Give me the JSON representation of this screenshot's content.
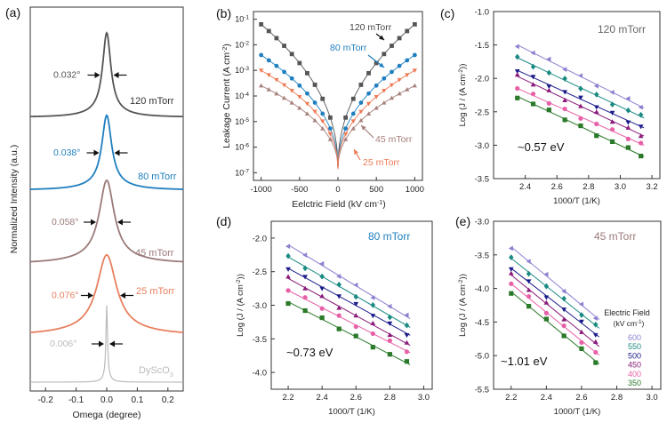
{
  "chart_data": [
    {
      "panel": "(a)",
      "type": "line",
      "xlabel": "Omega (degree)",
      "ylabel": "Normalized Intensity (a.u.)",
      "xlim": [
        -0.25,
        0.25
      ],
      "xticks": [
        "-0.2",
        "-0.1",
        "0.0",
        "0.1",
        "0.2"
      ],
      "series": [
        {
          "name": "120 mTorr",
          "fwhm": 0.032,
          "fwhm_label": "0.032°",
          "color": "#555555"
        },
        {
          "name": "80 mTorr",
          "fwhm": 0.038,
          "fwhm_label": "0.038°",
          "color": "#1f7fbf"
        },
        {
          "name": "45 mTorr",
          "fwhm": 0.058,
          "fwhm_label": "0.058°",
          "color": "#9a7a78"
        },
        {
          "name": "25 mTorr",
          "fwhm": 0.076,
          "fwhm_label": "0.076°",
          "color": "#e8805e"
        },
        {
          "name": "DyScO3",
          "fwhm": 0.006,
          "fwhm_label": "0.006°",
          "color": "#bbbbbb"
        }
      ]
    },
    {
      "panel": "(b)",
      "type": "scatter",
      "xlabel": "Eelctric Field (kV cm",
      "xlabel_sup": "-1",
      "xlabel_end": ")",
      "ylabel": "Leakage Current (A cm",
      "ylabel_sup": "-2",
      "ylabel_end": ")",
      "xlim": [
        -1100,
        1100
      ],
      "ylim_log10": [
        -7.3,
        -0.7
      ],
      "xticks": [
        "-1000",
        "-500",
        "0",
        "500",
        "1000"
      ],
      "ytick_exponents": [
        "-1",
        "-2",
        "-3",
        "-4",
        "-5",
        "-6",
        "-7"
      ],
      "ytick_base": "10",
      "series": [
        {
          "name": "120 mTorr",
          "color": "#555555",
          "marker": "square",
          "peak_log10": -1.2
        },
        {
          "name": "80 mTorr",
          "color": "#1f7fbf",
          "marker": "circle",
          "peak_log10": -2.4
        },
        {
          "name": "45 mTorr",
          "color": "#a6807c",
          "marker": "triangle-up",
          "peak_log10": -3.6
        },
        {
          "name": "25 mTorr",
          "color": "#ee7a55",
          "marker": "triangle-down",
          "peak_log10": -3.0
        }
      ]
    },
    {
      "panel": "(c)",
      "type": "scatter",
      "title": "120 mTorr",
      "annotation": "~0.57 eV",
      "xlabel": "1000/T (1/K)",
      "ylabel": "Log (J / (A cm",
      "ylabel_sup": "-2",
      "ylabel_end": "))",
      "xlim": [
        2.2,
        3.25
      ],
      "ylim": [
        -3.5,
        -1.0
      ],
      "xticks": [
        "2.4",
        "2.6",
        "2.8",
        "3.0",
        "3.2"
      ],
      "yticks": [
        "-1.0",
        "-1.5",
        "-2.0",
        "-2.5",
        "-3.0",
        "-3.5"
      ],
      "x": [
        2.35,
        2.45,
        2.55,
        2.65,
        2.75,
        2.85,
        2.95,
        3.05,
        3.13
      ],
      "series": [
        {
          "name": "600",
          "start": -1.5,
          "end": -2.42
        },
        {
          "name": "550",
          "start": -1.69,
          "end": -2.57
        },
        {
          "name": "500",
          "start": -1.88,
          "end": -2.72
        },
        {
          "name": "450",
          "start": -1.97,
          "end": -2.84
        },
        {
          "name": "400",
          "start": -2.15,
          "end": -2.98
        },
        {
          "name": "350",
          "start": -2.27,
          "end": -3.15
        }
      ]
    },
    {
      "panel": "(d)",
      "type": "scatter",
      "title": "80 mTorr",
      "annotation": "~0.73 eV",
      "xlabel": "1000/T (1/K)",
      "ylabel": "Log (J / (A cm",
      "ylabel_sup": "-2",
      "ylabel_end": "))",
      "xlim": [
        2.1,
        3.05
      ],
      "ylim": [
        -4.25,
        -1.75
      ],
      "xticks": [
        "2.2",
        "2.4",
        "2.6",
        "2.8",
        "3.0"
      ],
      "yticks": [
        "-2.0",
        "-2.5",
        "-3.0",
        "-3.5",
        "-4.0"
      ],
      "x": [
        2.2,
        2.3,
        2.4,
        2.5,
        2.6,
        2.7,
        2.8,
        2.9
      ],
      "series": [
        {
          "name": "600",
          "start": -2.1,
          "end": -3.17
        },
        {
          "name": "550",
          "start": -2.28,
          "end": -3.3
        },
        {
          "name": "500",
          "start": -2.45,
          "end": -3.42
        },
        {
          "name": "450",
          "start": -2.6,
          "end": -3.57
        },
        {
          "name": "400",
          "start": -2.78,
          "end": -3.68
        },
        {
          "name": "350",
          "start": -2.95,
          "end": -3.86
        }
      ]
    },
    {
      "panel": "(e)",
      "type": "scatter",
      "title": "45 mTorr",
      "annotation": "~1.01 eV",
      "xlabel": "1000/T (1/K)",
      "ylabel": "Log (J / (A cm",
      "ylabel_sup": "-2",
      "ylabel_end": "))",
      "xlim": [
        2.1,
        3.05
      ],
      "ylim": [
        -5.5,
        -3.0
      ],
      "xticks": [
        "2.2",
        "2.4",
        "2.6",
        "2.8",
        "3.0"
      ],
      "yticks": [
        "-3.0",
        "-3.5",
        "-4.0",
        "-4.5",
        "-5.0",
        "-5.5"
      ],
      "x": [
        2.2,
        2.3,
        2.4,
        2.5,
        2.6,
        2.68
      ],
      "legend_title_1": "Electric Field",
      "legend_title_2": "(kV cm",
      "legend_title_sup": "-1",
      "legend_title_end": ")",
      "series": [
        {
          "name": "600",
          "start": -3.38,
          "end": -4.42
        },
        {
          "name": "550",
          "start": -3.55,
          "end": -4.55
        },
        {
          "name": "500",
          "start": -3.7,
          "end": -4.68
        },
        {
          "name": "450",
          "start": -3.8,
          "end": -4.82
        },
        {
          "name": "400",
          "start": -3.93,
          "end": -4.95
        },
        {
          "name": "350",
          "start": -4.05,
          "end": -5.08
        }
      ]
    }
  ],
  "field_colors": [
    "#8c7fd0",
    "#1a8a82",
    "#1c1c8c",
    "#8a1a7a",
    "#e860a8",
    "#2a7a2a"
  ],
  "field_markers": [
    "triangle-left",
    "diamond",
    "triangle-down",
    "triangle-up",
    "circle",
    "square"
  ]
}
